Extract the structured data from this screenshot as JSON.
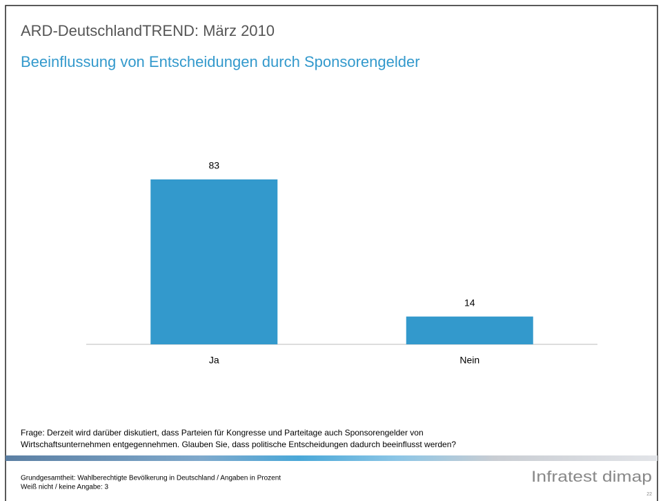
{
  "chart_data": {
    "type": "bar",
    "title": "ARD-DeutschlandTREND: März 2010",
    "subtitle": "Beeinflussung von Entscheidungen durch Sponsorengelder",
    "categories": [
      "Ja",
      "Nein"
    ],
    "values": [
      83,
      14
    ],
    "color": "#3399cc",
    "question": [
      "Frage: Derzeit wird darüber diskutiert, dass Parteien für Kongresse und Parteitage auch Sponsorengelder von",
      "Wirtschaftsunternehmen entgegennehmen. Glauben Sie, dass politische Entscheidungen dadurch beeinflusst werden?"
    ],
    "footnote": [
      "Grundgesamtheit: Wahlberechtigte Bevölkerung in Deutschland / Angaben in Prozent",
      "Weiß nicht / keine Angabe: 3"
    ],
    "logo": "Infratest dimap",
    "page_number": "22"
  }
}
